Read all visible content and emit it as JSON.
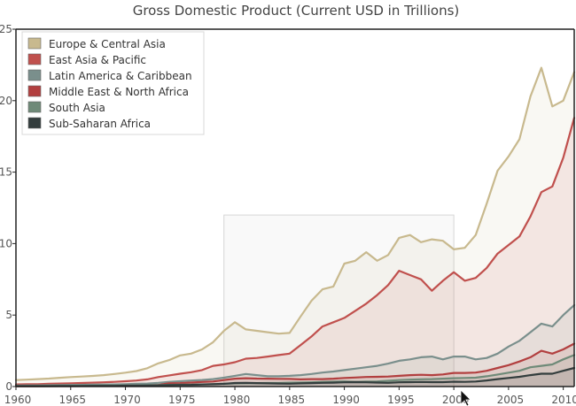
{
  "chart_data": {
    "type": "area",
    "title": "Gross Domestic Product (Current USD in Trillions)",
    "xlabel": "",
    "ylabel": "",
    "xlim": [
      1960,
      2011
    ],
    "ylim": [
      0,
      25
    ],
    "x_ticks": [
      1960,
      1965,
      1970,
      1975,
      1980,
      1985,
      1990,
      1995,
      2000,
      2005,
      2010
    ],
    "x_tick_labels": [
      "1960",
      "1965",
      "1970",
      "1975",
      "1980",
      "1985",
      "1990",
      "1995",
      "2000",
      "2005",
      "2010"
    ],
    "y_ticks": [
      0,
      5,
      10,
      15,
      20,
      25
    ],
    "y_tick_labels": [
      "0",
      "5",
      "10",
      "15",
      "20",
      "25"
    ],
    "grid": false,
    "legend_position": "top-left",
    "selection_box": {
      "x_range": [
        1979,
        2000
      ],
      "y_range": [
        0,
        12
      ]
    },
    "x": [
      1960,
      1961,
      1962,
      1963,
      1964,
      1965,
      1966,
      1967,
      1968,
      1969,
      1970,
      1971,
      1972,
      1973,
      1974,
      1975,
      1976,
      1977,
      1978,
      1979,
      1980,
      1981,
      1982,
      1983,
      1984,
      1985,
      1986,
      1987,
      1988,
      1989,
      1990,
      1991,
      1992,
      1993,
      1994,
      1995,
      1996,
      1997,
      1998,
      1999,
      2000,
      2001,
      2002,
      2003,
      2004,
      2005,
      2006,
      2007,
      2008,
      2009,
      2010,
      2011
    ],
    "series": [
      {
        "name": "Europe & Central Asia",
        "color": "#c8b98e",
        "values": [
          0.45,
          0.48,
          0.52,
          0.56,
          0.61,
          0.66,
          0.7,
          0.74,
          0.8,
          0.88,
          0.97,
          1.08,
          1.28,
          1.62,
          1.85,
          2.18,
          2.3,
          2.6,
          3.1,
          3.9,
          4.5,
          4.0,
          3.9,
          3.8,
          3.7,
          3.75,
          4.9,
          6.0,
          6.8,
          7.0,
          8.6,
          8.8,
          9.4,
          8.8,
          9.2,
          10.4,
          10.6,
          10.1,
          10.3,
          10.2,
          9.6,
          9.7,
          10.6,
          12.8,
          15.1,
          16.1,
          17.3,
          20.3,
          22.3,
          19.6,
          20.0,
          22.0
        ]
      },
      {
        "name": "East Asia & Pacific",
        "color": "#c0504d",
        "values": [
          0.15,
          0.16,
          0.17,
          0.19,
          0.21,
          0.23,
          0.25,
          0.27,
          0.3,
          0.33,
          0.37,
          0.42,
          0.5,
          0.66,
          0.78,
          0.9,
          1.0,
          1.15,
          1.45,
          1.55,
          1.7,
          1.95,
          2.0,
          2.1,
          2.2,
          2.3,
          2.9,
          3.5,
          4.2,
          4.5,
          4.8,
          5.3,
          5.8,
          6.4,
          7.1,
          8.1,
          7.8,
          7.5,
          6.7,
          7.4,
          8.0,
          7.4,
          7.6,
          8.3,
          9.3,
          9.9,
          10.5,
          11.9,
          13.6,
          14.0,
          16.0,
          18.8
        ]
      },
      {
        "name": "Latin America & Caribbean",
        "color": "#7a8f8c",
        "values": [
          0.07,
          0.08,
          0.08,
          0.09,
          0.1,
          0.11,
          0.12,
          0.13,
          0.14,
          0.15,
          0.17,
          0.19,
          0.21,
          0.26,
          0.33,
          0.37,
          0.42,
          0.46,
          0.52,
          0.62,
          0.75,
          0.88,
          0.8,
          0.72,
          0.72,
          0.75,
          0.8,
          0.88,
          0.98,
          1.05,
          1.15,
          1.25,
          1.35,
          1.45,
          1.6,
          1.8,
          1.9,
          2.05,
          2.1,
          1.9,
          2.1,
          2.1,
          1.9,
          2.0,
          2.3,
          2.8,
          3.2,
          3.8,
          4.4,
          4.2,
          5.0,
          5.7
        ]
      },
      {
        "name": "Middle East & North Africa",
        "color": "#b23f3f",
        "values": [
          0.02,
          0.02,
          0.02,
          0.03,
          0.03,
          0.03,
          0.04,
          0.04,
          0.05,
          0.05,
          0.06,
          0.07,
          0.08,
          0.11,
          0.22,
          0.24,
          0.28,
          0.32,
          0.35,
          0.45,
          0.55,
          0.58,
          0.56,
          0.55,
          0.54,
          0.53,
          0.5,
          0.52,
          0.52,
          0.55,
          0.6,
          0.63,
          0.67,
          0.68,
          0.7,
          0.75,
          0.8,
          0.82,
          0.8,
          0.85,
          0.95,
          0.95,
          0.98,
          1.1,
          1.3,
          1.5,
          1.75,
          2.05,
          2.5,
          2.3,
          2.6,
          3.0
        ]
      },
      {
        "name": "South Asia",
        "color": "#6f8a78",
        "values": [
          0.04,
          0.04,
          0.05,
          0.05,
          0.06,
          0.06,
          0.06,
          0.06,
          0.07,
          0.07,
          0.08,
          0.08,
          0.09,
          0.1,
          0.12,
          0.13,
          0.13,
          0.15,
          0.17,
          0.19,
          0.22,
          0.23,
          0.24,
          0.25,
          0.25,
          0.27,
          0.28,
          0.3,
          0.33,
          0.34,
          0.36,
          0.33,
          0.35,
          0.36,
          0.4,
          0.45,
          0.48,
          0.51,
          0.52,
          0.55,
          0.58,
          0.6,
          0.62,
          0.72,
          0.84,
          0.97,
          1.1,
          1.35,
          1.45,
          1.55,
          1.9,
          2.2
        ]
      },
      {
        "name": "Sub-Saharan Africa",
        "color": "#333d3d",
        "values": [
          0.03,
          0.03,
          0.03,
          0.03,
          0.04,
          0.04,
          0.04,
          0.05,
          0.05,
          0.05,
          0.06,
          0.06,
          0.07,
          0.08,
          0.1,
          0.11,
          0.12,
          0.14,
          0.16,
          0.19,
          0.25,
          0.26,
          0.24,
          0.22,
          0.21,
          0.2,
          0.22,
          0.24,
          0.26,
          0.27,
          0.3,
          0.31,
          0.3,
          0.28,
          0.26,
          0.3,
          0.31,
          0.32,
          0.31,
          0.31,
          0.34,
          0.33,
          0.35,
          0.43,
          0.52,
          0.6,
          0.68,
          0.8,
          0.9,
          0.9,
          1.1,
          1.3
        ]
      }
    ]
  }
}
